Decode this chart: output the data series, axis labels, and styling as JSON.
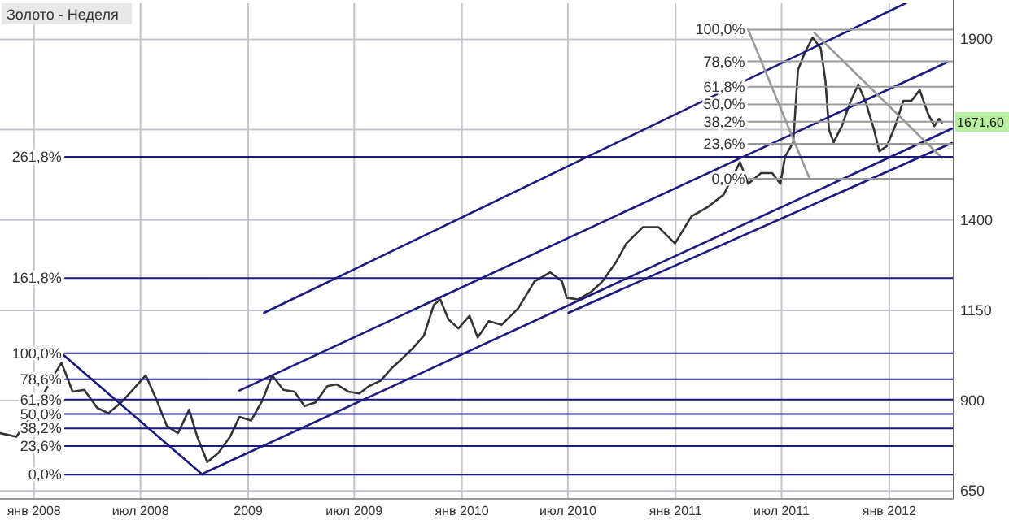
{
  "chart_data": {
    "type": "line",
    "title": "Золото - Неделя",
    "xlim": [
      "2007-11-04",
      "2012-04-20"
    ],
    "ylim": [
      628,
      2000
    ],
    "xticks": [
      {
        "value": "2008-01-01",
        "label": "янв 2008"
      },
      {
        "value": "2008-07-01",
        "label": "июл 2008"
      },
      {
        "value": "2009-01-01",
        "label": "2009"
      },
      {
        "value": "2009-07-01",
        "label": "июл 2009"
      },
      {
        "value": "2010-01-01",
        "label": "янв 2010"
      },
      {
        "value": "2010-07-01",
        "label": "июл 2010"
      },
      {
        "value": "2011-01-01",
        "label": "янв 2011"
      },
      {
        "value": "2011-07-01",
        "label": "июл 2011"
      },
      {
        "value": "2012-01-01",
        "label": "янв 2012"
      }
    ],
    "yticks": [
      650,
      900,
      1150,
      1400,
      {
        "value": 1650,
        "label": null
      },
      1900
    ],
    "grid": true,
    "series": [
      {
        "color": "#333333",
        "x": [
          "2007-11-04",
          "2007-12-02",
          "2007-12-21",
          "2008-01-07",
          "2008-01-26",
          "2008-02-17",
          "2008-03-07",
          "2008-03-27",
          "2008-04-18",
          "2008-05-07",
          "2008-05-29",
          "2008-06-18",
          "2008-07-10",
          "2008-07-29",
          "2008-08-15",
          "2008-09-03",
          "2008-09-22",
          "2008-10-06",
          "2008-10-23",
          "2008-11-11",
          "2008-12-01",
          "2008-12-17",
          "2009-01-06",
          "2009-01-25",
          "2009-02-11",
          "2009-03-02",
          "2009-03-21",
          "2009-04-07",
          "2009-04-26",
          "2009-05-16",
          "2009-06-01",
          "2009-06-21",
          "2009-07-10",
          "2009-07-26",
          "2009-08-15",
          "2009-09-03",
          "2009-09-20",
          "2009-10-09",
          "2009-10-28",
          "2009-11-14",
          "2009-11-25",
          "2009-12-09",
          "2009-12-26",
          "2010-01-14",
          "2010-01-28",
          "2010-02-16",
          "2010-03-10",
          "2010-04-07",
          "2010-05-05",
          "2010-06-01",
          "2010-06-21",
          "2010-06-29",
          "2010-07-18",
          "2010-08-09",
          "2010-08-29",
          "2010-09-20",
          "2010-10-09",
          "2010-11-06",
          "2010-12-03",
          "2010-12-31",
          "2011-01-28",
          "2011-02-24",
          "2011-03-24",
          "2011-04-21",
          "2011-05-05",
          "2011-05-27",
          "2011-06-15",
          "2011-06-29",
          "2011-07-07",
          "2011-07-21",
          "2011-07-29",
          "2011-08-09",
          "2011-08-23",
          "2011-09-06",
          "2011-09-14",
          "2011-09-20",
          "2011-09-28",
          "2011-10-12",
          "2011-10-26",
          "2011-11-09",
          "2011-11-22",
          "2011-12-06",
          "2011-12-15",
          "2011-12-28",
          "2012-01-11",
          "2012-01-25",
          "2012-02-08",
          "2012-02-22",
          "2012-03-07",
          "2012-03-18",
          "2012-03-26",
          "2012-03-31"
        ],
        "values": [
          810,
          800,
          845,
          885,
          945,
          1005,
          925,
          930,
          880,
          865,
          895,
          930,
          970,
          900,
          830,
          810,
          875,
          800,
          730,
          755,
          800,
          855,
          845,
          900,
          970,
          930,
          925,
          885,
          895,
          940,
          945,
          925,
          920,
          940,
          955,
          990,
          1015,
          1045,
          1080,
          1165,
          1180,
          1125,
          1100,
          1135,
          1075,
          1120,
          1110,
          1155,
          1230,
          1255,
          1230,
          1185,
          1180,
          1200,
          1230,
          1280,
          1335,
          1380,
          1380,
          1335,
          1410,
          1435,
          1470,
          1560,
          1500,
          1530,
          1530,
          1500,
          1575,
          1615,
          1815,
          1860,
          1905,
          1875,
          1785,
          1650,
          1615,
          1660,
          1725,
          1775,
          1725,
          1650,
          1590,
          1605,
          1660,
          1730,
          1730,
          1760,
          1695,
          1660,
          1680,
          1670
        ]
      },
      {
        "color": "#1a1a80",
        "x": [
          "2009-01-28",
          "2012-01-29"
        ],
        "values": [
          1143,
          2000
        ]
      },
      {
        "color": "#1a1a80",
        "x": [
          "2008-12-17",
          "2012-04-09"
        ],
        "values": [
          928,
          1837
        ]
      },
      {
        "color": "#1a1a80",
        "x": [
          "2008-10-17",
          "2012-04-17"
        ],
        "values": [
          699,
          1653
        ]
      },
      {
        "color": "#1a1a80",
        "x": [
          "2010-07-02",
          "2012-04-17"
        ],
        "values": [
          1143,
          1613
        ]
      },
      {
        "color": "#1a1a80",
        "x": [
          "2008-02-17",
          "2008-10-15"
        ],
        "values": [
          1031,
          695
        ]
      },
      {
        "color": "#999999",
        "x": [
          "2011-05-05",
          "2011-08-18"
        ],
        "values": [
          1927,
          1514
        ]
      },
      {
        "color": "#999999",
        "x": [
          "2011-08-26",
          "2012-03-31"
        ],
        "values": [
          1918,
          1572
        ]
      },
      {
        "name": "100,0%",
        "color": "#999999",
        "x": [
          "2011-05-05",
          "2012-04-20"
        ],
        "values": [
          1927,
          1927
        ]
      },
      {
        "name": "78,6%",
        "color": "#999999",
        "x": [
          "2011-05-05",
          "2012-04-20"
        ],
        "values": [
          1839,
          1839
        ]
      },
      {
        "name": "61,8%",
        "color": "#999999",
        "x": [
          "2011-05-05",
          "2012-04-20"
        ],
        "values": [
          1769,
          1769
        ]
      },
      {
        "name": "50,0%",
        "color": "#999999",
        "x": [
          "2011-05-05",
          "2012-04-20"
        ],
        "values": [
          1720,
          1720
        ]
      },
      {
        "name": "38,2%",
        "color": "#999999",
        "x": [
          "2011-05-05",
          "2012-04-20"
        ],
        "values": [
          1672,
          1672
        ]
      },
      {
        "name": "23,6%",
        "color": "#999999",
        "x": [
          "2011-05-05",
          "2012-04-20"
        ],
        "values": [
          1611,
          1611
        ]
      },
      {
        "name": "0,0%",
        "color": "#999999",
        "x": [
          "2011-05-05",
          "2012-04-20"
        ],
        "values": [
          1514,
          1514
        ]
      },
      {
        "name": "261,8%",
        "color": "#1a1a80",
        "x": [
          "2008-02-23",
          "2012-04-20"
        ],
        "values": [
          1575,
          1575
        ]
      },
      {
        "name": "161,8%",
        "color": "#1a1a80",
        "x": [
          "2008-02-23",
          "2012-04-20"
        ],
        "values": [
          1239,
          1239
        ]
      },
      {
        "name": "100,0%",
        "color": "#1a1a80",
        "x": [
          "2008-02-23",
          "2012-04-20"
        ],
        "values": [
          1031,
          1031
        ]
      },
      {
        "name": "78,6%",
        "color": "#1a1a80",
        "x": [
          "2008-02-23",
          "2012-04-20"
        ],
        "values": [
          959,
          959
        ]
      },
      {
        "name": "61,8%",
        "color": "#1a1a80",
        "x": [
          "2008-02-23",
          "2012-04-20"
        ],
        "values": [
          903,
          903
        ]
      },
      {
        "name": "50,0%",
        "color": "#1a1a80",
        "x": [
          "2008-02-23",
          "2012-04-20"
        ],
        "values": [
          863,
          863
        ]
      },
      {
        "name": "38,2%",
        "color": "#1a1a80",
        "x": [
          "2008-02-23",
          "2012-04-20"
        ],
        "values": [
          823,
          823
        ]
      },
      {
        "name": "23,6%",
        "color": "#1a1a80",
        "x": [
          "2008-02-23",
          "2012-04-20"
        ],
        "values": [
          774,
          774
        ]
      },
      {
        "name": "0,0%",
        "color": "#1a1a80",
        "x": [
          "2008-02-23",
          "2012-04-20"
        ],
        "values": [
          695,
          695
        ]
      }
    ],
    "annotations": [
      {
        "text": "1671,60",
        "y": 1671.6
      }
    ]
  }
}
